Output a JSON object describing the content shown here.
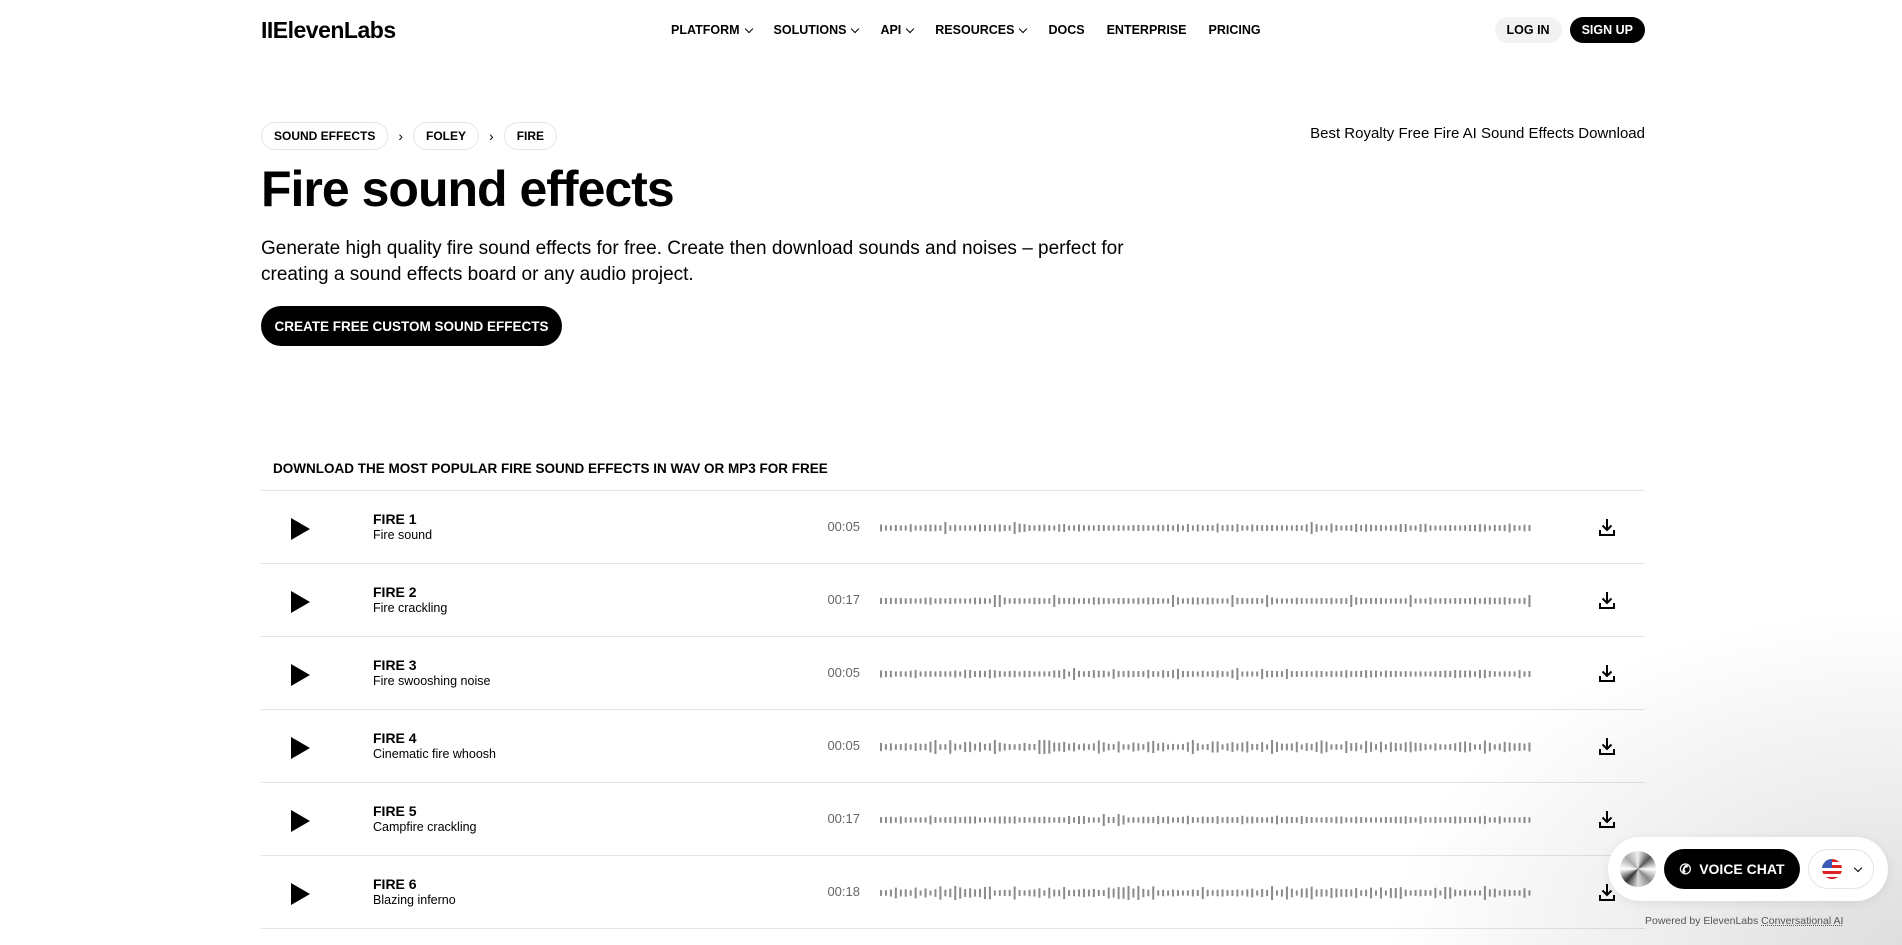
{
  "header": {
    "logo": "IIElevenLabs",
    "nav": [
      "PLATFORM",
      "SOLUTIONS",
      "API",
      "RESOURCES",
      "DOCS",
      "ENTERPRISE",
      "PRICING"
    ],
    "nav_has_dropdown": [
      true,
      true,
      true,
      true,
      false,
      false,
      false
    ],
    "login": "LOG IN",
    "signup": "SIGN UP"
  },
  "breadcrumb": [
    "SOUND EFFECTS",
    "FOLEY",
    "FIRE"
  ],
  "tagline": "Best Royalty Free Fire AI Sound Effects Download",
  "title": "Fire sound effects",
  "description": "Generate high quality fire sound effects for free. Create then download sounds and noises – perfect for creating a sound effects board or any audio project.",
  "cta": "CREATE FREE CUSTOM SOUND EFFECTS",
  "section_heading": "DOWNLOAD THE MOST POPULAR FIRE SOUND EFFECTS IN WAV OR MP3 FOR FREE",
  "sounds": [
    {
      "name": "FIRE 1",
      "desc": "Fire sound",
      "duration": "00:05"
    },
    {
      "name": "FIRE 2",
      "desc": "Fire crackling",
      "duration": "00:17"
    },
    {
      "name": "FIRE 3",
      "desc": "Fire swooshing noise",
      "duration": "00:05"
    },
    {
      "name": "FIRE 4",
      "desc": "Cinematic fire whoosh",
      "duration": "00:05"
    },
    {
      "name": "FIRE 5",
      "desc": "Campfire crackling",
      "duration": "00:17"
    },
    {
      "name": "FIRE 6",
      "desc": "Blazing inferno",
      "duration": "00:18"
    }
  ],
  "widget": {
    "voice_chat": "VOICE CHAT",
    "powered_prefix": "Powered by ElevenLabs ",
    "powered_link": "Conversational AI"
  },
  "colors": {
    "accent": "#000000",
    "waveform": "#8a8a8a",
    "duration": "#666666"
  }
}
